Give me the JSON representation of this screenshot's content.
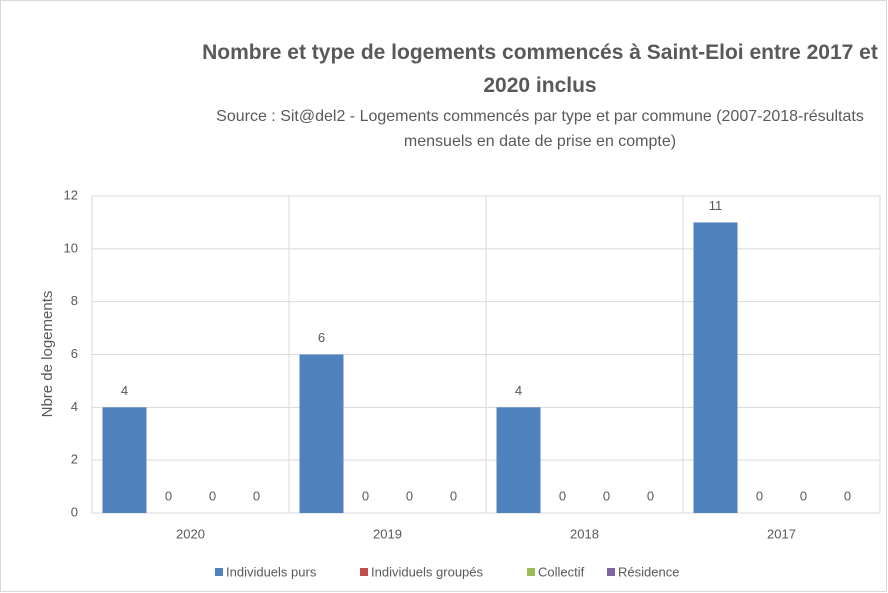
{
  "chart_data": {
    "type": "bar",
    "title": "Nombre et type de logements commencés à Saint-Eloi entre 2017 et 2020 inclus",
    "subtitle": "Source : Sit@del2 - Logements commencés par type et par commune (2007-2018-résultats mensuels en date de prise en compte)",
    "y_label": "Nbre de logements",
    "categories": [
      "2020",
      "2019",
      "2018",
      "2017"
    ],
    "series": [
      {
        "name": "Individuels purs",
        "color": "#4f81bd",
        "values": [
          4,
          6,
          4,
          11
        ]
      },
      {
        "name": "Individuels groupés",
        "color": "#c0504d",
        "values": [
          0,
          0,
          0,
          0
        ]
      },
      {
        "name": "Collectif",
        "color": "#9bbb59",
        "values": [
          0,
          0,
          0,
          0
        ]
      },
      {
        "name": "Résidence",
        "color": "#8064a2",
        "values": [
          0,
          0,
          0,
          0
        ]
      }
    ],
    "ylim": [
      0,
      12
    ],
    "yticks": [
      0,
      2,
      4,
      6,
      8,
      10,
      12
    ],
    "grid": true,
    "legend": "bottom"
  }
}
